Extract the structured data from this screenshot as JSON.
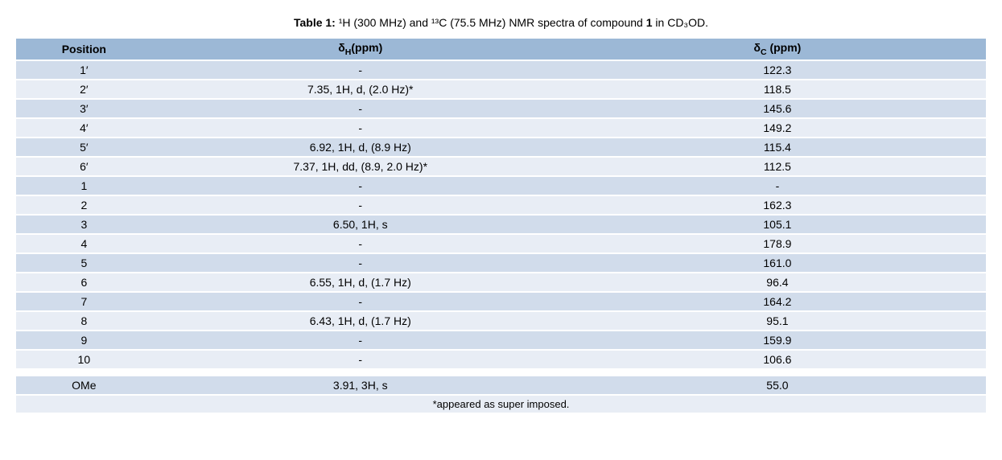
{
  "caption": {
    "prefix_bold": "Table 1:",
    "text_before_compound": " ¹H (300 MHz) and ¹³C (75.5 MHz) NMR spectra of compound ",
    "compound_bold": "1",
    "text_after_compound": " in CD₃OD."
  },
  "colors": {
    "header_bg": "#9cb8d6",
    "row_odd_bg": "#d1dceb",
    "row_even_bg": "#e8edf5",
    "text": "#000000"
  },
  "columns": {
    "position": "Position",
    "delta_h": "δ_H(ppm)",
    "delta_c": "δ_C (ppm)"
  },
  "rows_main": [
    {
      "pos": "1′",
      "h": "-",
      "c": "122.3"
    },
    {
      "pos": "2′",
      "h": "7.35, 1H, d, (2.0 Hz)*",
      "c": "118.5"
    },
    {
      "pos": "3′",
      "h": "-",
      "c": "145.6"
    },
    {
      "pos": "4′",
      "h": "-",
      "c": "149.2"
    },
    {
      "pos": "5′",
      "h": "6.92, 1H, d, (8.9 Hz)",
      "c": "115.4"
    },
    {
      "pos": "6′",
      "h": "7.37, 1H, dd, (8.9, 2.0 Hz)*",
      "c": "112.5"
    },
    {
      "pos": "1",
      "h": "-",
      "c": "-"
    },
    {
      "pos": "2",
      "h": "-",
      "c": "162.3"
    },
    {
      "pos": "3",
      "h": "6.50, 1H, s",
      "c": "105.1"
    },
    {
      "pos": "4",
      "h": "-",
      "c": "178.9"
    },
    {
      "pos": "5",
      "h": "-",
      "c": "161.0"
    },
    {
      "pos": "6",
      "h": "6.55, 1H, d, (1.7 Hz)",
      "c": "96.4"
    },
    {
      "pos": "7",
      "h": "-",
      "c": "164.2"
    },
    {
      "pos": "8",
      "h": "6.43, 1H, d, (1.7 Hz)",
      "c": "95.1"
    },
    {
      "pos": "9",
      "h": "-",
      "c": "159.9"
    },
    {
      "pos": "10",
      "h": "-",
      "c": "106.6"
    }
  ],
  "rows_secondary": [
    {
      "pos": "OMe",
      "h": "3.91, 3H, s",
      "c": "55.0"
    }
  ],
  "footnote": "*appeared as super imposed."
}
